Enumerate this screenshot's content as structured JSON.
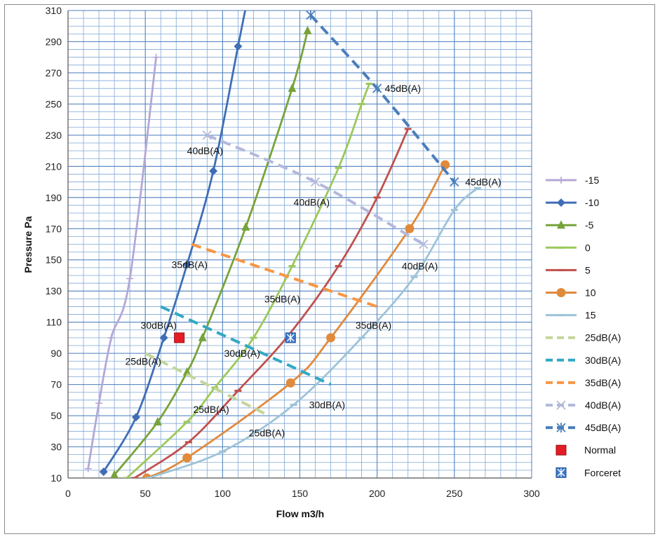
{
  "chart_data": {
    "type": "line",
    "title": "",
    "xlabel": "Flow m3/h",
    "ylabel": "Pressure Pa",
    "xlim": [
      0,
      300
    ],
    "ylim": [
      10,
      310
    ],
    "x_ticks": [
      0,
      50,
      100,
      150,
      200,
      250,
      300
    ],
    "y_ticks": [
      10,
      30,
      50,
      70,
      90,
      110,
      130,
      150,
      170,
      190,
      210,
      230,
      250,
      270,
      290,
      310
    ],
    "grid": "major and minor",
    "legend_position": "right",
    "series": [
      {
        "name": "-15",
        "color": "#b4a7d6",
        "marker": "plus",
        "dash": false,
        "points": [
          [
            13,
            16
          ],
          [
            20,
            58
          ],
          [
            28,
            100
          ],
          [
            40,
            138
          ],
          [
            57,
            280
          ]
        ]
      },
      {
        "name": "-10",
        "color": "#3f6eb5",
        "marker": "diamond",
        "dash": false,
        "points": [
          [
            23,
            14
          ],
          [
            44,
            49
          ],
          [
            62,
            100
          ],
          [
            77,
            147
          ],
          [
            94,
            207
          ],
          [
            110,
            287
          ],
          [
            115,
            312
          ]
        ]
      },
      {
        "name": "-5",
        "color": "#77a33a",
        "marker": "triangle",
        "dash": false,
        "points": [
          [
            30,
            12
          ],
          [
            58,
            46
          ],
          [
            77,
            78
          ],
          [
            87,
            100
          ],
          [
            115,
            171
          ],
          [
            145,
            260
          ],
          [
            155,
            297
          ]
        ]
      },
      {
        "name": "0",
        "color": "#9bc85a",
        "marker": "dash",
        "dash": false,
        "points": [
          [
            38,
            10
          ],
          [
            77,
            46
          ],
          [
            95,
            68
          ],
          [
            120,
            100
          ],
          [
            145,
            146
          ],
          [
            175,
            209
          ],
          [
            190,
            250
          ],
          [
            195,
            263
          ]
        ]
      },
      {
        "name": "5",
        "color": "#c0504d",
        "marker": "dash",
        "dash": false,
        "points": [
          [
            43,
            10
          ],
          [
            78,
            33
          ],
          [
            110,
            66
          ],
          [
            143,
            102
          ],
          [
            175,
            146
          ],
          [
            200,
            190
          ],
          [
            220,
            234
          ]
        ]
      },
      {
        "name": "10",
        "color": "#e08a3c",
        "marker": "circle",
        "dash": false,
        "points": [
          [
            51,
            10
          ],
          [
            77,
            23
          ],
          [
            144,
            71
          ],
          [
            170,
            100
          ],
          [
            221,
            170
          ],
          [
            244,
            211
          ]
        ]
      },
      {
        "name": "15",
        "color": "#9dc3d9",
        "marker": "dash",
        "dash": false,
        "points": [
          [
            52,
            10
          ],
          [
            100,
            27
          ],
          [
            146,
            57
          ],
          [
            190,
            100
          ],
          [
            224,
            139
          ],
          [
            250,
            182
          ],
          [
            265,
            196
          ]
        ]
      },
      {
        "name": "25dB(A)",
        "color": "#c3d69b",
        "marker": "none",
        "dash": true,
        "points": [
          [
            50,
            90
          ],
          [
            130,
            50
          ]
        ]
      },
      {
        "name": "30dB(A)",
        "color": "#31a8c4",
        "marker": "none",
        "dash": true,
        "points": [
          [
            60,
            120
          ],
          [
            170,
            70
          ]
        ]
      },
      {
        "name": "35dB(A)",
        "color": "#f79646",
        "marker": "none",
        "dash": true,
        "points": [
          [
            80,
            160
          ],
          [
            200,
            120
          ]
        ]
      },
      {
        "name": "40dB(A)",
        "color": "#b3b8dc",
        "marker": "x",
        "dash": true,
        "points": [
          [
            90,
            230
          ],
          [
            160,
            200
          ],
          [
            230,
            160
          ]
        ]
      },
      {
        "name": "45dB(A)",
        "color": "#4a7ebb",
        "marker": "star",
        "dash": true,
        "points": [
          [
            157,
            307
          ],
          [
            200,
            260
          ],
          [
            250,
            200
          ]
        ]
      },
      {
        "name": "Normal",
        "color": "#e31c25",
        "marker": "square-only",
        "dash": false,
        "points": [
          [
            72,
            100
          ]
        ]
      },
      {
        "name": "Forceret",
        "color": "#3c78c8",
        "marker": "square-star-only",
        "dash": false,
        "points": [
          [
            144,
            100
          ]
        ]
      }
    ],
    "annotations": [
      {
        "text": "45dB(A)",
        "x": 205,
        "y": 260
      },
      {
        "text": "45dB(A)",
        "x": 257,
        "y": 200
      },
      {
        "text": "40dB(A)",
        "x": 77,
        "y": 220
      },
      {
        "text": "40dB(A)",
        "x": 146,
        "y": 187
      },
      {
        "text": "40dB(A)",
        "x": 216,
        "y": 146
      },
      {
        "text": "35dB(A)",
        "x": 67,
        "y": 147
      },
      {
        "text": "35dB(A)",
        "x": 127,
        "y": 125
      },
      {
        "text": "35dB(A)",
        "x": 186,
        "y": 108
      },
      {
        "text": "30dB(A)",
        "x": 47,
        "y": 108
      },
      {
        "text": "30dB(A)",
        "x": 101,
        "y": 90
      },
      {
        "text": "30dB(A)",
        "x": 156,
        "y": 57
      },
      {
        "text": "25dB(A)",
        "x": 37,
        "y": 85
      },
      {
        "text": "25dB(A)",
        "x": 81,
        "y": 54
      },
      {
        "text": "25dB(A)",
        "x": 117,
        "y": 39
      }
    ]
  }
}
